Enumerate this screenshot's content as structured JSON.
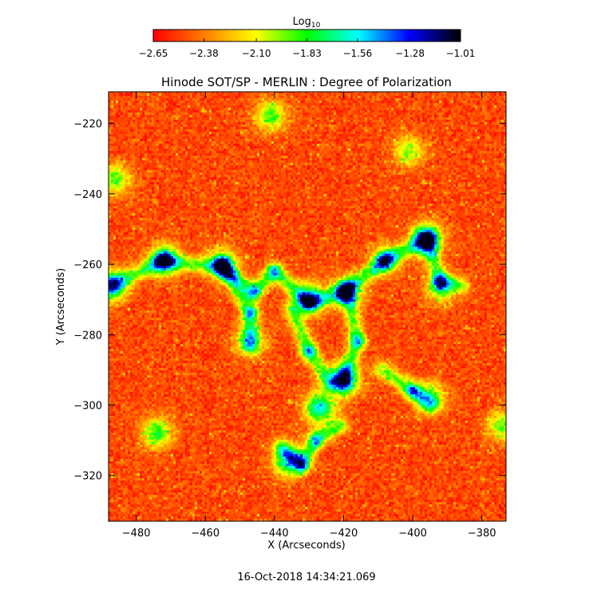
{
  "chart_data": {
    "type": "heatmap",
    "title": "Hinode SOT/SP - MERLIN : Degree of Polarization",
    "xlabel": "X (Arcseconds)",
    "ylabel": "Y (Arcseconds)",
    "xlim": [
      -488,
      -373
    ],
    "ylim": [
      -333,
      -211
    ],
    "x_ticks": [
      -480,
      -460,
      -440,
      -420,
      -400,
      -380
    ],
    "x_tick_labels": [
      "−480",
      "−460",
      "−440",
      "−420",
      "−400",
      "−380"
    ],
    "y_ticks": [
      -220,
      -240,
      -260,
      -280,
      -300,
      -320
    ],
    "y_tick_labels": [
      "−220",
      "−240",
      "−260",
      "−280",
      "−300",
      "−320"
    ],
    "colorbar": {
      "label_base": "Log",
      "label_sub": "10",
      "range": [
        -2.65,
        -1.01
      ],
      "tick_values": [
        -2.65,
        -2.38,
        -2.1,
        -1.83,
        -1.56,
        -1.28,
        -1.01
      ],
      "tick_labels": [
        "−2.65",
        "−2.38",
        "−2.10",
        "−1.83",
        "−1.56",
        "−1.28",
        "−1.01"
      ],
      "colormap": [
        "#ff0000",
        "#ff8000",
        "#ffff00",
        "#00ff00",
        "#00ffff",
        "#0000ff",
        "#000000"
      ]
    },
    "features": [
      {
        "x": -420,
        "y": -293,
        "strength": 1.0
      },
      {
        "x": -396,
        "y": -253,
        "strength": 0.95
      },
      {
        "x": -430,
        "y": -270,
        "strength": 0.75
      },
      {
        "x": -472,
        "y": -259,
        "strength": 0.75
      },
      {
        "x": -487,
        "y": -266,
        "strength": 0.8
      },
      {
        "x": -436,
        "y": -316,
        "strength": 0.7
      },
      {
        "x": -455,
        "y": -260,
        "strength": 0.6
      },
      {
        "x": -447,
        "y": -282,
        "strength": 0.5
      },
      {
        "x": -474,
        "y": -308,
        "strength": 0.6
      },
      {
        "x": -441,
        "y": -218,
        "strength": 0.55
      },
      {
        "x": -408,
        "y": -259,
        "strength": 0.5
      },
      {
        "x": -419,
        "y": -268,
        "strength": 0.6
      },
      {
        "x": -392,
        "y": -267,
        "strength": 0.45
      },
      {
        "x": -395,
        "y": -298,
        "strength": 0.55
      },
      {
        "x": -401,
        "y": -228,
        "strength": 0.45
      },
      {
        "x": -486,
        "y": -236,
        "strength": 0.5
      },
      {
        "x": -374,
        "y": -306,
        "strength": 0.5
      },
      {
        "x": -427,
        "y": -301,
        "strength": 0.8
      }
    ],
    "filaments": [
      [
        [
          -487,
          -266
        ],
        [
          -472,
          -259
        ],
        [
          -455,
          -261
        ],
        [
          -446,
          -268
        ],
        [
          -440,
          -262
        ]
      ],
      [
        [
          -455,
          -260
        ],
        [
          -447,
          -274
        ],
        [
          -447,
          -283
        ]
      ],
      [
        [
          -440,
          -262
        ],
        [
          -430,
          -271
        ],
        [
          -420,
          -268
        ],
        [
          -408,
          -259
        ],
        [
          -396,
          -253
        ]
      ],
      [
        [
          -435,
          -273
        ],
        [
          -430,
          -285
        ],
        [
          -424,
          -294
        ]
      ],
      [
        [
          -438,
          -312
        ],
        [
          -432,
          -317
        ],
        [
          -428,
          -310
        ],
        [
          -421,
          -306
        ]
      ],
      [
        [
          -419,
          -267
        ],
        [
          -416,
          -282
        ],
        [
          -420,
          -293
        ]
      ],
      [
        [
          -396,
          -253
        ],
        [
          -392,
          -265
        ],
        [
          -386,
          -266
        ]
      ],
      [
        [
          -409,
          -290
        ],
        [
          -400,
          -296
        ],
        [
          -395,
          -300
        ]
      ]
    ],
    "date_label": "16-Oct-2018 14:34:21.069"
  }
}
